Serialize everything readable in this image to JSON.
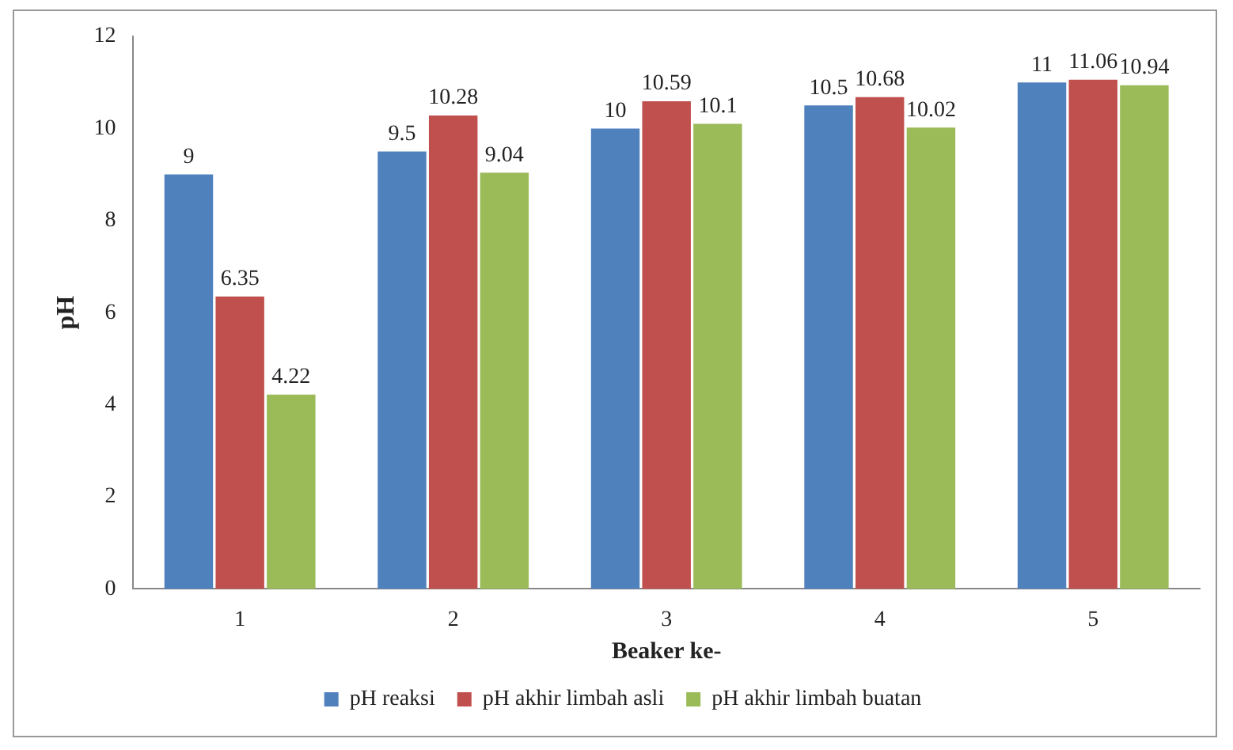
{
  "chart_data": {
    "type": "bar",
    "xlabel": "Beaker ke-",
    "ylabel": "pH",
    "categories": [
      "1",
      "2",
      "3",
      "4",
      "5"
    ],
    "series": [
      {
        "name": "pH reaksi",
        "color": "#4f81bd",
        "values": [
          9,
          9.5,
          10,
          10.5,
          11
        ]
      },
      {
        "name": "pH akhir limbah asli",
        "color": "#c0504d",
        "values": [
          6.35,
          10.28,
          10.59,
          10.68,
          11.06
        ]
      },
      {
        "name": "pH akhir limbah buatan",
        "color": "#9bbb59",
        "values": [
          4.22,
          9.04,
          10.1,
          10.02,
          10.94
        ]
      }
    ],
    "ylim": [
      0,
      12
    ],
    "yticks": [
      0,
      2,
      4,
      6,
      8,
      10,
      12
    ],
    "grid": false,
    "legend": "bottom",
    "data_labels": true
  }
}
